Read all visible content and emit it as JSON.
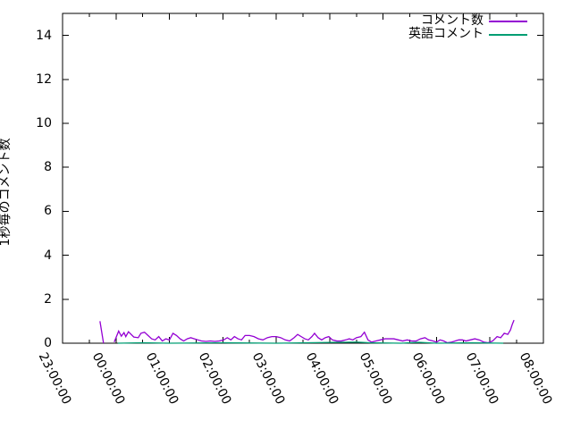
{
  "chart_data": {
    "type": "line",
    "title": "",
    "xlabel": "",
    "ylabel": "1秒毎のコメント数",
    "grid": false,
    "legend_position": "top-right-inside",
    "background_color": "#ffffff",
    "border_color": "#000000",
    "ylim": [
      0,
      15
    ],
    "y_ticks": [
      0,
      2,
      4,
      6,
      8,
      10,
      12,
      14
    ],
    "x_ticks": [
      "23:00:00",
      "00:00:00",
      "01:00:00",
      "02:00:00",
      "03:00:00",
      "04:00:00",
      "05:00:00",
      "06:00:00",
      "07:00:00",
      "08:00:00"
    ],
    "x_minutes_per_tick": 60,
    "x_minor_tick_minutes": 30,
    "xlim_minutes": [
      0,
      540
    ],
    "series": [
      {
        "name": "コメント数",
        "color": "#9400d3",
        "segments": [
          [
            [
              42,
              1.0
            ],
            [
              46,
              0.0
            ]
          ],
          [
            [
              58,
              0.05
            ],
            [
              63,
              0.55
            ],
            [
              66,
              0.32
            ],
            [
              69,
              0.48
            ],
            [
              71,
              0.3
            ],
            [
              74,
              0.52
            ],
            [
              80,
              0.28
            ],
            [
              85,
              0.25
            ],
            [
              88,
              0.45
            ],
            [
              92,
              0.5
            ],
            [
              96,
              0.35
            ],
            [
              100,
              0.2
            ],
            [
              104,
              0.15
            ],
            [
              108,
              0.3
            ],
            [
              112,
              0.1
            ],
            [
              116,
              0.2
            ],
            [
              120,
              0.15
            ],
            [
              124,
              0.45
            ],
            [
              128,
              0.35
            ],
            [
              132,
              0.2
            ],
            [
              136,
              0.1
            ],
            [
              140,
              0.2
            ],
            [
              144,
              0.25
            ],
            [
              148,
              0.2
            ],
            [
              152,
              0.15
            ],
            [
              156,
              0.1
            ],
            [
              161,
              0.08
            ],
            [
              166,
              0.1
            ],
            [
              171,
              0.08
            ],
            [
              176,
              0.1
            ],
            [
              181,
              0.15
            ],
            [
              185,
              0.25
            ],
            [
              189,
              0.15
            ],
            [
              193,
              0.3
            ],
            [
              197,
              0.2
            ],
            [
              201,
              0.15
            ],
            [
              205,
              0.35
            ],
            [
              210,
              0.35
            ],
            [
              215,
              0.3
            ],
            [
              220,
              0.2
            ],
            [
              225,
              0.15
            ],
            [
              230,
              0.25
            ],
            [
              235,
              0.3
            ],
            [
              240,
              0.3
            ],
            [
              245,
              0.25
            ],
            [
              250,
              0.15
            ],
            [
              255,
              0.1
            ],
            [
              260,
              0.25
            ],
            [
              264,
              0.4
            ],
            [
              268,
              0.3
            ],
            [
              272,
              0.2
            ],
            [
              276,
              0.15
            ],
            [
              280,
              0.3
            ],
            [
              283,
              0.45
            ],
            [
              287,
              0.25
            ],
            [
              291,
              0.15
            ],
            [
              295,
              0.25
            ],
            [
              299,
              0.3
            ],
            [
              303,
              0.15
            ],
            [
              308,
              0.1
            ],
            [
              313,
              0.1
            ],
            [
              318,
              0.15
            ],
            [
              322,
              0.2
            ],
            [
              326,
              0.15
            ],
            [
              330,
              0.25
            ],
            [
              335,
              0.3
            ],
            [
              339,
              0.5
            ],
            [
              343,
              0.15
            ],
            [
              347,
              0.05
            ],
            [
              352,
              0.1
            ],
            [
              357,
              0.15
            ],
            [
              362,
              0.2
            ],
            [
              367,
              0.2
            ],
            [
              372,
              0.2
            ],
            [
              377,
              0.15
            ],
            [
              382,
              0.1
            ],
            [
              387,
              0.15
            ],
            [
              392,
              0.1
            ],
            [
              397,
              0.1
            ],
            [
              402,
              0.2
            ],
            [
              407,
              0.25
            ],
            [
              411,
              0.15
            ],
            [
              416,
              0.1
            ],
            [
              420,
              0.05
            ],
            [
              424,
              0.15
            ],
            [
              428,
              0.1
            ],
            [
              432,
              0.02
            ],
            [
              437,
              0.05
            ],
            [
              441,
              0.1
            ],
            [
              445,
              0.15
            ],
            [
              449,
              0.15
            ],
            [
              453,
              0.1
            ],
            [
              458,
              0.15
            ],
            [
              463,
              0.2
            ],
            [
              468,
              0.15
            ],
            [
              473,
              0.05
            ],
            [
              478,
              0.02
            ],
            [
              483,
              0.1
            ],
            [
              488,
              0.3
            ],
            [
              492,
              0.25
            ],
            [
              496,
              0.45
            ],
            [
              500,
              0.4
            ],
            [
              503,
              0.6
            ],
            [
              505,
              0.85
            ],
            [
              507,
              1.05
            ]
          ]
        ]
      },
      {
        "name": "英語コメント",
        "color": "#009e73",
        "segments": [
          [
            [
              62,
              0
            ],
            [
              90,
              0.02
            ],
            [
              120,
              0
            ],
            [
              180,
              0.02
            ],
            [
              240,
              0
            ],
            [
              310,
              0.04
            ],
            [
              330,
              0.05
            ],
            [
              345,
              0.02
            ],
            [
              380,
              0
            ],
            [
              400,
              0.04
            ],
            [
              420,
              0
            ],
            [
              460,
              0.02
            ],
            [
              495,
              0
            ]
          ]
        ]
      }
    ]
  }
}
